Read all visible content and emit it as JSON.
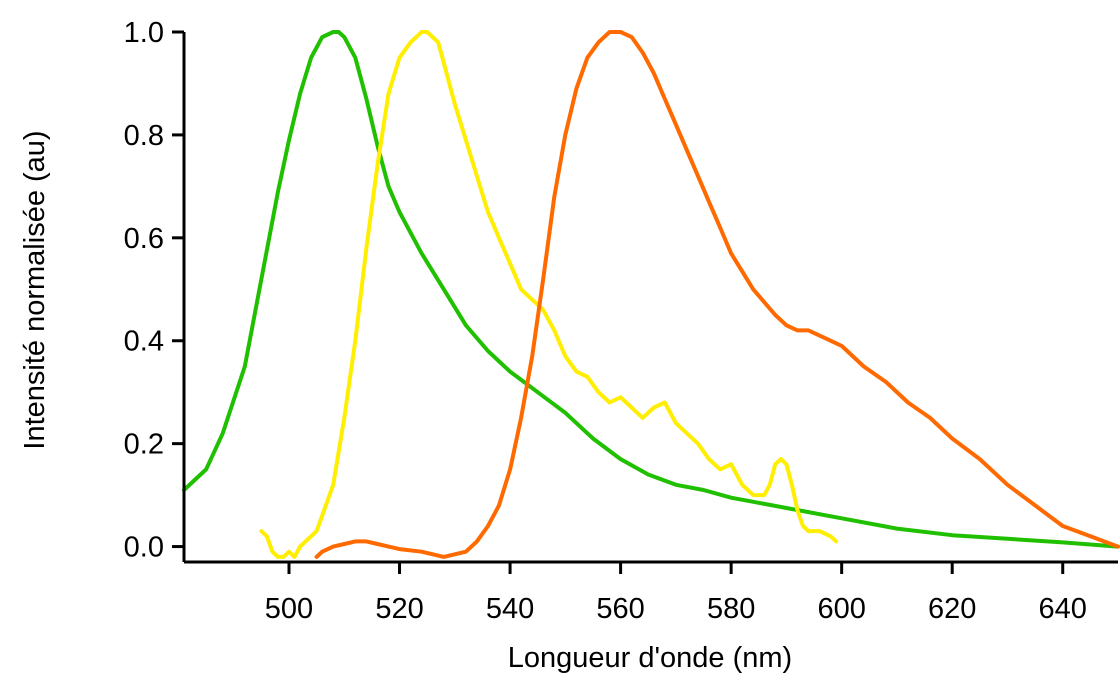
{
  "chart_data": {
    "type": "line",
    "title": "",
    "xlabel": "Longueur d'onde (nm)",
    "ylabel": "Intensité normalisée (au)",
    "xlim": [
      481,
      650
    ],
    "ylim": [
      -0.03,
      1.0
    ],
    "xticks": [
      500,
      520,
      540,
      560,
      580,
      600,
      620,
      640
    ],
    "yticks": [
      0.0,
      0.2,
      0.4,
      0.6,
      0.8,
      1.0
    ],
    "ytick_labels": [
      "0.0",
      "0.2",
      "0.4",
      "0.6",
      "0.8",
      "1.0"
    ],
    "grid": false,
    "legend": false,
    "series": [
      {
        "color": "#20c000",
        "x": [
          481,
          485,
          488,
          492,
          495,
          498,
          500,
          502,
          504,
          506,
          508,
          509,
          510,
          512,
          514,
          516,
          518,
          520,
          524,
          528,
          532,
          536,
          540,
          545,
          550,
          555,
          560,
          565,
          570,
          575,
          580,
          590,
          600,
          610,
          620,
          630,
          640,
          650
        ],
        "y": [
          0.11,
          0.15,
          0.22,
          0.35,
          0.52,
          0.69,
          0.79,
          0.88,
          0.95,
          0.99,
          1.0,
          1.0,
          0.99,
          0.95,
          0.87,
          0.78,
          0.7,
          0.65,
          0.57,
          0.5,
          0.43,
          0.38,
          0.34,
          0.3,
          0.26,
          0.21,
          0.17,
          0.14,
          0.12,
          0.11,
          0.095,
          0.075,
          0.055,
          0.035,
          0.022,
          0.015,
          0.008,
          0.0
        ]
      },
      {
        "color": "#ffee00",
        "x": [
          495,
          496,
          497,
          498,
          499,
          500,
          501,
          502,
          503,
          504,
          505,
          506,
          508,
          510,
          512,
          514,
          516,
          518,
          520,
          522,
          524,
          525,
          526,
          527,
          528,
          529,
          530,
          532,
          534,
          536,
          538,
          540,
          542,
          544,
          545,
          546,
          548,
          550,
          552,
          554,
          556,
          558,
          560,
          562,
          564,
          566,
          568,
          570,
          572,
          574,
          576,
          578,
          580,
          582,
          584,
          586,
          587,
          588,
          589,
          590,
          591,
          592,
          593,
          594,
          596,
          598,
          599
        ],
        "y": [
          0.03,
          0.02,
          -0.01,
          -0.02,
          -0.02,
          -0.01,
          -0.02,
          0.0,
          0.01,
          0.02,
          0.03,
          0.06,
          0.12,
          0.25,
          0.4,
          0.58,
          0.74,
          0.88,
          0.95,
          0.98,
          1.0,
          1.0,
          0.99,
          0.98,
          0.94,
          0.9,
          0.86,
          0.79,
          0.72,
          0.65,
          0.6,
          0.55,
          0.5,
          0.48,
          0.47,
          0.46,
          0.42,
          0.37,
          0.34,
          0.33,
          0.3,
          0.28,
          0.29,
          0.27,
          0.25,
          0.27,
          0.28,
          0.24,
          0.22,
          0.2,
          0.17,
          0.15,
          0.16,
          0.12,
          0.1,
          0.1,
          0.12,
          0.16,
          0.17,
          0.16,
          0.12,
          0.07,
          0.04,
          0.03,
          0.03,
          0.02,
          0.01
        ]
      },
      {
        "color": "#ff6a00",
        "x": [
          505,
          506,
          508,
          510,
          512,
          514,
          516,
          518,
          520,
          524,
          528,
          532,
          534,
          536,
          538,
          540,
          542,
          544,
          546,
          548,
          550,
          552,
          554,
          556,
          558,
          560,
          562,
          564,
          566,
          568,
          570,
          572,
          574,
          576,
          578,
          580,
          584,
          588,
          590,
          592,
          594,
          596,
          598,
          600,
          604,
          608,
          612,
          616,
          620,
          625,
          630,
          635,
          640,
          645,
          650
        ],
        "y": [
          -0.02,
          -0.01,
          0.0,
          0.005,
          0.01,
          0.01,
          0.005,
          0.0,
          -0.005,
          -0.01,
          -0.02,
          -0.01,
          0.01,
          0.04,
          0.08,
          0.15,
          0.25,
          0.37,
          0.52,
          0.68,
          0.8,
          0.89,
          0.95,
          0.98,
          1.0,
          1.0,
          0.99,
          0.96,
          0.92,
          0.87,
          0.82,
          0.77,
          0.72,
          0.67,
          0.62,
          0.57,
          0.5,
          0.45,
          0.43,
          0.42,
          0.42,
          0.41,
          0.4,
          0.39,
          0.35,
          0.32,
          0.28,
          0.25,
          0.21,
          0.17,
          0.12,
          0.08,
          0.04,
          0.02,
          0.0
        ]
      }
    ]
  }
}
